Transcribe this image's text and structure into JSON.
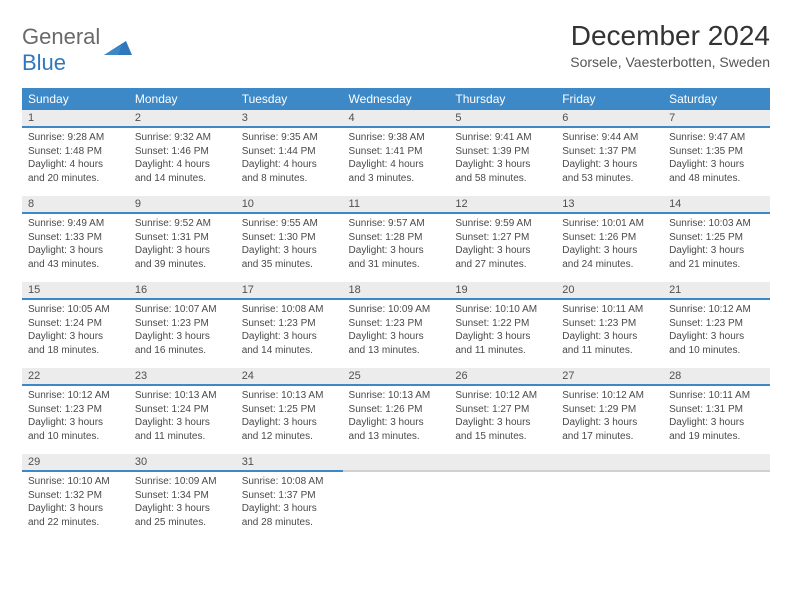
{
  "brand": {
    "top": "General",
    "bottom": "Blue"
  },
  "title": "December 2024",
  "location": "Sorsele, Vaesterbotten, Sweden",
  "colors": {
    "header_bg": "#3d88c7",
    "header_text": "#ffffff",
    "daynum_bg": "#ececec",
    "daynum_border": "#3d88c7",
    "body_text": "#4a4a4a",
    "brand_blue": "#2f78bd"
  },
  "weekdays": [
    "Sunday",
    "Monday",
    "Tuesday",
    "Wednesday",
    "Thursday",
    "Friday",
    "Saturday"
  ],
  "weeks": [
    [
      {
        "n": "1",
        "sr": "Sunrise: 9:28 AM",
        "ss": "Sunset: 1:48 PM",
        "d1": "Daylight: 4 hours",
        "d2": "and 20 minutes."
      },
      {
        "n": "2",
        "sr": "Sunrise: 9:32 AM",
        "ss": "Sunset: 1:46 PM",
        "d1": "Daylight: 4 hours",
        "d2": "and 14 minutes."
      },
      {
        "n": "3",
        "sr": "Sunrise: 9:35 AM",
        "ss": "Sunset: 1:44 PM",
        "d1": "Daylight: 4 hours",
        "d2": "and 8 minutes."
      },
      {
        "n": "4",
        "sr": "Sunrise: 9:38 AM",
        "ss": "Sunset: 1:41 PM",
        "d1": "Daylight: 4 hours",
        "d2": "and 3 minutes."
      },
      {
        "n": "5",
        "sr": "Sunrise: 9:41 AM",
        "ss": "Sunset: 1:39 PM",
        "d1": "Daylight: 3 hours",
        "d2": "and 58 minutes."
      },
      {
        "n": "6",
        "sr": "Sunrise: 9:44 AM",
        "ss": "Sunset: 1:37 PM",
        "d1": "Daylight: 3 hours",
        "d2": "and 53 minutes."
      },
      {
        "n": "7",
        "sr": "Sunrise: 9:47 AM",
        "ss": "Sunset: 1:35 PM",
        "d1": "Daylight: 3 hours",
        "d2": "and 48 minutes."
      }
    ],
    [
      {
        "n": "8",
        "sr": "Sunrise: 9:49 AM",
        "ss": "Sunset: 1:33 PM",
        "d1": "Daylight: 3 hours",
        "d2": "and 43 minutes."
      },
      {
        "n": "9",
        "sr": "Sunrise: 9:52 AM",
        "ss": "Sunset: 1:31 PM",
        "d1": "Daylight: 3 hours",
        "d2": "and 39 minutes."
      },
      {
        "n": "10",
        "sr": "Sunrise: 9:55 AM",
        "ss": "Sunset: 1:30 PM",
        "d1": "Daylight: 3 hours",
        "d2": "and 35 minutes."
      },
      {
        "n": "11",
        "sr": "Sunrise: 9:57 AM",
        "ss": "Sunset: 1:28 PM",
        "d1": "Daylight: 3 hours",
        "d2": "and 31 minutes."
      },
      {
        "n": "12",
        "sr": "Sunrise: 9:59 AM",
        "ss": "Sunset: 1:27 PM",
        "d1": "Daylight: 3 hours",
        "d2": "and 27 minutes."
      },
      {
        "n": "13",
        "sr": "Sunrise: 10:01 AM",
        "ss": "Sunset: 1:26 PM",
        "d1": "Daylight: 3 hours",
        "d2": "and 24 minutes."
      },
      {
        "n": "14",
        "sr": "Sunrise: 10:03 AM",
        "ss": "Sunset: 1:25 PM",
        "d1": "Daylight: 3 hours",
        "d2": "and 21 minutes."
      }
    ],
    [
      {
        "n": "15",
        "sr": "Sunrise: 10:05 AM",
        "ss": "Sunset: 1:24 PM",
        "d1": "Daylight: 3 hours",
        "d2": "and 18 minutes."
      },
      {
        "n": "16",
        "sr": "Sunrise: 10:07 AM",
        "ss": "Sunset: 1:23 PM",
        "d1": "Daylight: 3 hours",
        "d2": "and 16 minutes."
      },
      {
        "n": "17",
        "sr": "Sunrise: 10:08 AM",
        "ss": "Sunset: 1:23 PM",
        "d1": "Daylight: 3 hours",
        "d2": "and 14 minutes."
      },
      {
        "n": "18",
        "sr": "Sunrise: 10:09 AM",
        "ss": "Sunset: 1:23 PM",
        "d1": "Daylight: 3 hours",
        "d2": "and 13 minutes."
      },
      {
        "n": "19",
        "sr": "Sunrise: 10:10 AM",
        "ss": "Sunset: 1:22 PM",
        "d1": "Daylight: 3 hours",
        "d2": "and 11 minutes."
      },
      {
        "n": "20",
        "sr": "Sunrise: 10:11 AM",
        "ss": "Sunset: 1:23 PM",
        "d1": "Daylight: 3 hours",
        "d2": "and 11 minutes."
      },
      {
        "n": "21",
        "sr": "Sunrise: 10:12 AM",
        "ss": "Sunset: 1:23 PM",
        "d1": "Daylight: 3 hours",
        "d2": "and 10 minutes."
      }
    ],
    [
      {
        "n": "22",
        "sr": "Sunrise: 10:12 AM",
        "ss": "Sunset: 1:23 PM",
        "d1": "Daylight: 3 hours",
        "d2": "and 10 minutes."
      },
      {
        "n": "23",
        "sr": "Sunrise: 10:13 AM",
        "ss": "Sunset: 1:24 PM",
        "d1": "Daylight: 3 hours",
        "d2": "and 11 minutes."
      },
      {
        "n": "24",
        "sr": "Sunrise: 10:13 AM",
        "ss": "Sunset: 1:25 PM",
        "d1": "Daylight: 3 hours",
        "d2": "and 12 minutes."
      },
      {
        "n": "25",
        "sr": "Sunrise: 10:13 AM",
        "ss": "Sunset: 1:26 PM",
        "d1": "Daylight: 3 hours",
        "d2": "and 13 minutes."
      },
      {
        "n": "26",
        "sr": "Sunrise: 10:12 AM",
        "ss": "Sunset: 1:27 PM",
        "d1": "Daylight: 3 hours",
        "d2": "and 15 minutes."
      },
      {
        "n": "27",
        "sr": "Sunrise: 10:12 AM",
        "ss": "Sunset: 1:29 PM",
        "d1": "Daylight: 3 hours",
        "d2": "and 17 minutes."
      },
      {
        "n": "28",
        "sr": "Sunrise: 10:11 AM",
        "ss": "Sunset: 1:31 PM",
        "d1": "Daylight: 3 hours",
        "d2": "and 19 minutes."
      }
    ],
    [
      {
        "n": "29",
        "sr": "Sunrise: 10:10 AM",
        "ss": "Sunset: 1:32 PM",
        "d1": "Daylight: 3 hours",
        "d2": "and 22 minutes."
      },
      {
        "n": "30",
        "sr": "Sunrise: 10:09 AM",
        "ss": "Sunset: 1:34 PM",
        "d1": "Daylight: 3 hours",
        "d2": "and 25 minutes."
      },
      {
        "n": "31",
        "sr": "Sunrise: 10:08 AM",
        "ss": "Sunset: 1:37 PM",
        "d1": "Daylight: 3 hours",
        "d2": "and 28 minutes."
      },
      null,
      null,
      null,
      null
    ]
  ]
}
